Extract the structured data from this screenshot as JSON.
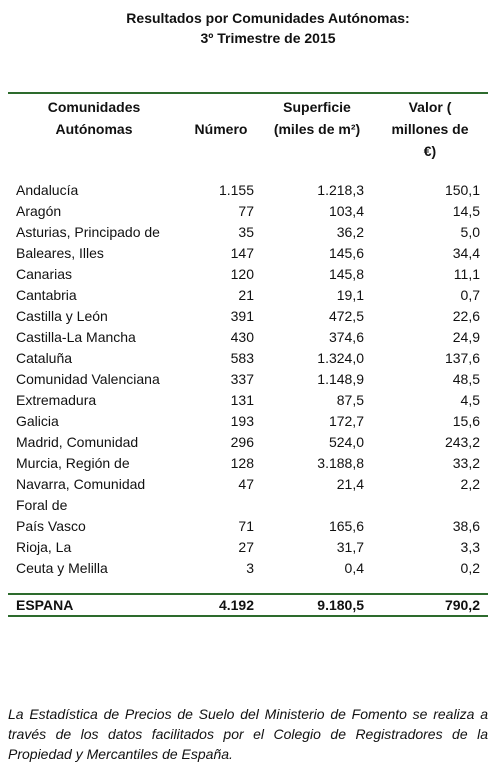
{
  "title": [
    "Resultados por Comunidades Autónomas:",
    "3º Trimestre de 2015"
  ],
  "table": {
    "header": [
      "Comunidades Autónomas",
      "Número",
      "Superficie (miles de m²)",
      "Valor ( millones de €)"
    ],
    "rows": [
      [
        "Andalucía",
        "1.155",
        "1.218,3",
        "150,1"
      ],
      [
        "Aragón",
        "77",
        "103,4",
        "14,5"
      ],
      [
        "Asturias, Principado de",
        "35",
        "36,2",
        "5,0"
      ],
      [
        "Baleares, Illes",
        "147",
        "145,6",
        "34,4"
      ],
      [
        "Canarias",
        "120",
        "145,8",
        "11,1"
      ],
      [
        "Cantabria",
        "21",
        "19,1",
        "0,7"
      ],
      [
        "Castilla y León",
        "391",
        "472,5",
        "22,6"
      ],
      [
        "Castilla-La Mancha",
        "430",
        "374,6",
        "24,9"
      ],
      [
        "Cataluña",
        "583",
        "1.324,0",
        "137,6"
      ],
      [
        "Comunidad Valenciana",
        "337",
        "1.148,9",
        "48,5"
      ],
      [
        "Extremadura",
        "131",
        "87,5",
        "4,5"
      ],
      [
        "Galicia",
        "193",
        "172,7",
        "15,6"
      ],
      [
        "Madrid, Comunidad",
        "296",
        "524,0",
        "243,2"
      ],
      [
        "Murcia, Región de",
        "128",
        "3.188,8",
        "33,2"
      ],
      [
        "Navarra, Comunidad Foral de",
        "47",
        "21,4",
        "2,2"
      ],
      [
        "País Vasco",
        "71",
        "165,6",
        "38,6"
      ],
      [
        "Rioja, La",
        "27",
        "31,7",
        "3,3"
      ],
      [
        "Ceuta y Melilla",
        "3",
        "0,4",
        "0,2"
      ]
    ],
    "total": [
      "ESPANA",
      "4.192",
      "9.180,5",
      "790,2"
    ]
  },
  "note": "La Estadística de Precios de Suelo del Ministerio de Fomento se realiza a través de los datos facilitados por el Colegio de Registradores de la Propiedad y Mercantiles de España."
}
